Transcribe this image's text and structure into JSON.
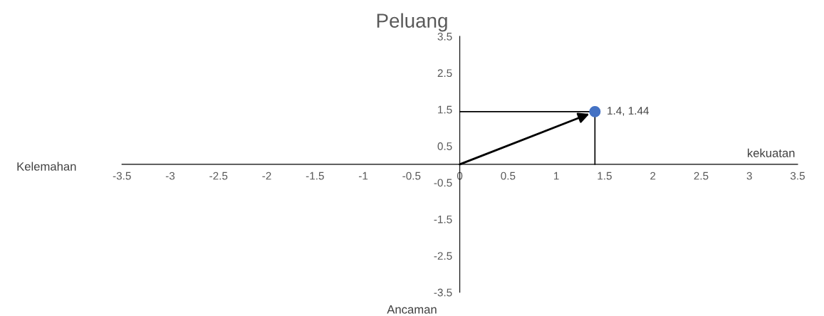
{
  "chart_data": {
    "type": "scatter",
    "title": "Peluang",
    "x": [
      1.4
    ],
    "series": [
      {
        "color": "#4472c4",
        "values": [
          1.44
        ],
        "value_labels": [
          "1.4, 1.44"
        ]
      }
    ],
    "xlim": [
      -3.5,
      3.5
    ],
    "xticks": [
      -3.5,
      -3,
      -2.5,
      -2,
      -1.5,
      -1,
      -0.5,
      0,
      0.5,
      1,
      1.5,
      2,
      2.5,
      3,
      3.5
    ],
    "ylim": [
      -3.5,
      3.5
    ],
    "yticks": [
      -3.5,
      -2.5,
      -1.5,
      -0.5,
      0.5,
      1.5,
      2.5,
      3.5
    ],
    "annotations": [
      "Kelemahan",
      "kekuatan",
      "Ancaman"
    ],
    "marker": "circle",
    "grid": false,
    "legend": false
  }
}
